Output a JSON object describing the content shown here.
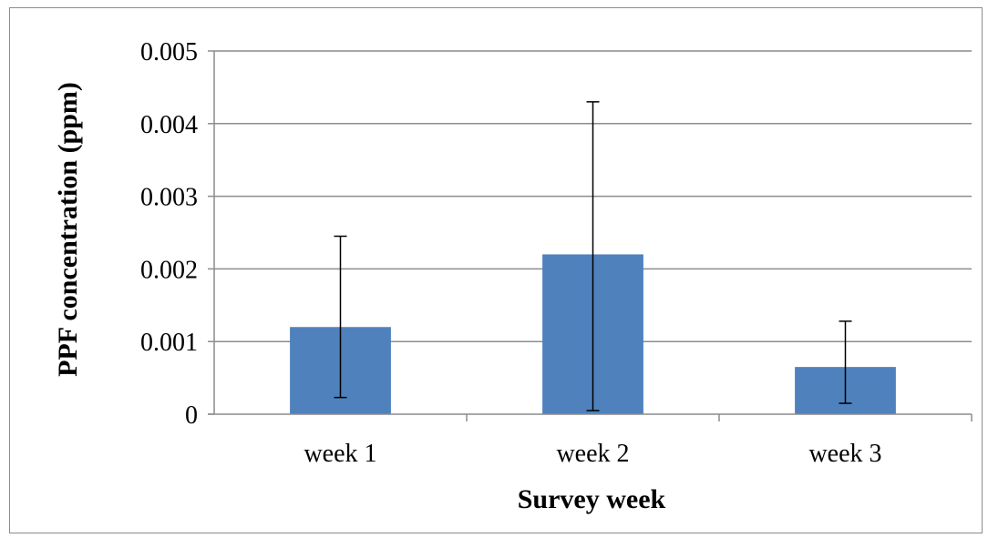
{
  "chart_data": {
    "type": "bar",
    "categories": [
      "week 1",
      "week 2",
      "week 3"
    ],
    "values": [
      0.0012,
      0.0022,
      0.00065
    ],
    "error_bars": [
      {
        "low": 0.00023,
        "high": 0.00245
      },
      {
        "low": 5e-05,
        "high": 0.0043
      },
      {
        "low": 0.00015,
        "high": 0.00128
      }
    ],
    "xlabel": "Survey week",
    "ylabel": "PPF concentration (ppm)",
    "ylim": [
      0,
      0.005
    ],
    "yticks": [
      "0",
      "0.001",
      "0.002",
      "0.003",
      "0.004",
      "0.005"
    ],
    "ytick_values": [
      0,
      0.001,
      0.002,
      0.003,
      0.004,
      0.005
    ],
    "grid": true,
    "legend": "none",
    "colors": {
      "bar": "#4f81bd",
      "grid": "#8c8c8c",
      "axis": "#8c8c8c",
      "error_bar": "#000000"
    }
  }
}
